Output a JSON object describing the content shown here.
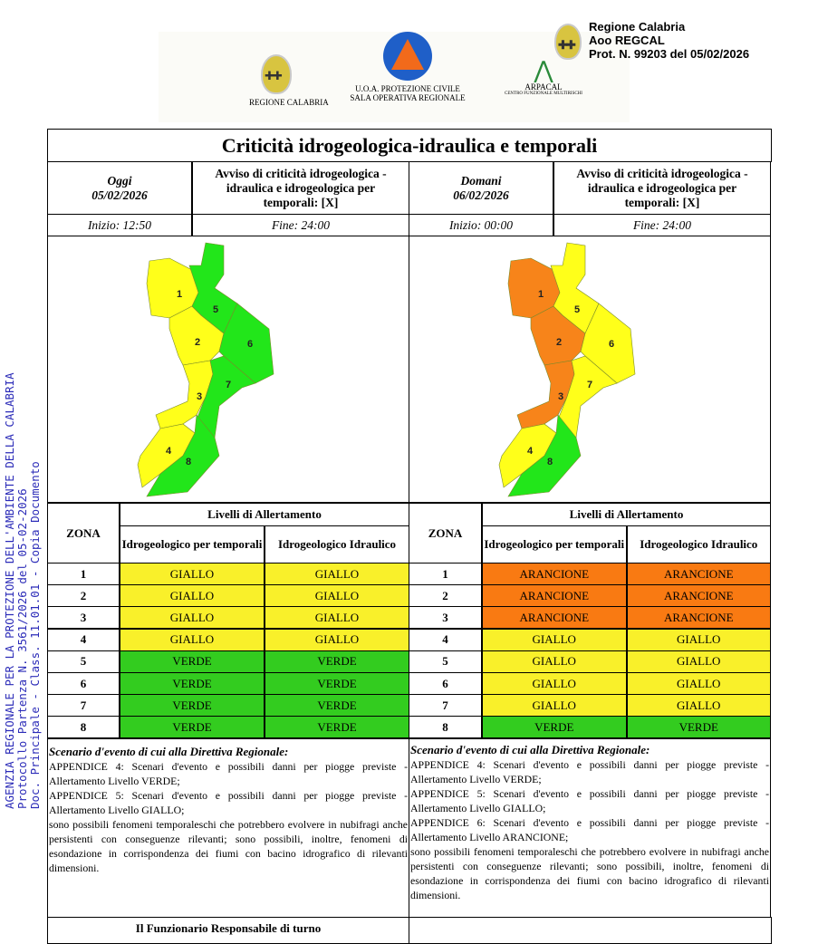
{
  "header": {
    "logos": [
      {
        "name": "regione-calabria",
        "label": "REGIONE CALABRIA"
      },
      {
        "name": "protezione-civile",
        "label_line1": "U.O.A. PROTEZIONE CIVILE",
        "label_line2": "SALA OPERATIVA REGIONALE"
      },
      {
        "name": "arpacal",
        "label": "ARPACAL",
        "sublabel": "CENTRO FUNZIONALE MULTIRISCHI"
      }
    ],
    "protocol_stamp": {
      "line1": "Regione Calabria",
      "line2": "Aoo REGCAL",
      "line3": "Prot. N. 99203 del 05/02/2026"
    }
  },
  "watermark": {
    "line1": "AGENZIA REGIONALE PER LA PROTEZIONE DELL'AMBIENTE DELLA CALABRIA",
    "line2": "Protocollo Partenza N. 3561/2026 del 05-02-2026",
    "line3": "Doc. Principale - Class. 11.01.01 - Copia Documento"
  },
  "title": "Criticità idrogeologica-idraulica e temporali",
  "colors": {
    "GIALLO": "#f9f02a",
    "VERDE": "#33cc1f",
    "ARANCIONE": "#f97a12",
    "map_yellow": "#ffff1a",
    "map_green": "#22e61a",
    "map_orange": "#f7841a"
  },
  "days": [
    {
      "label": "Oggi",
      "date": "05/02/2026",
      "notice": "Avviso di criticità idrogeologica - idraulica e idrogeologica per temporali: [X]",
      "start": "Inizio: 12:50",
      "end": "Fine: 24:00",
      "zones": [
        [
          "1",
          "GIALLO",
          "GIALLO"
        ],
        [
          "2",
          "GIALLO",
          "GIALLO"
        ],
        [
          "3",
          "GIALLO",
          "GIALLO"
        ],
        [
          "4",
          "GIALLO",
          "GIALLO"
        ],
        [
          "5",
          "VERDE",
          "VERDE"
        ],
        [
          "6",
          "VERDE",
          "VERDE"
        ],
        [
          "7",
          "VERDE",
          "VERDE"
        ],
        [
          "8",
          "VERDE",
          "VERDE"
        ]
      ],
      "scenario_title": "Scenario d'evento di cui alla Direttiva Regionale:",
      "scenario": [
        "APPENDICE 4: Scenari d'evento e possibili danni per piogge previste - Allertamento Livello VERDE;",
        "APPENDICE 5: Scenari d'evento e possibili danni per piogge previste - Allertamento Livello GIALLO;",
        "sono possibili fenomeni temporaleschi che potrebbero evolvere in nubifragi anche persistenti con conseguenze rilevanti; sono possibili, inoltre, fenomeni di esondazione in corrispondenza dei fiumi con bacino idrografico di rilevanti dimensioni."
      ]
    },
    {
      "label": "Domani",
      "date": "06/02/2026",
      "notice": "Avviso di criticità idrogeologica - idraulica e idrogeologica per temporali: [X]",
      "start": "Inizio: 00:00",
      "end": "Fine: 24:00",
      "zones": [
        [
          "1",
          "ARANCIONE",
          "ARANCIONE"
        ],
        [
          "2",
          "ARANCIONE",
          "ARANCIONE"
        ],
        [
          "3",
          "ARANCIONE",
          "ARANCIONE"
        ],
        [
          "4",
          "GIALLO",
          "GIALLO"
        ],
        [
          "5",
          "GIALLO",
          "GIALLO"
        ],
        [
          "6",
          "GIALLO",
          "GIALLO"
        ],
        [
          "7",
          "GIALLO",
          "GIALLO"
        ],
        [
          "8",
          "VERDE",
          "VERDE"
        ]
      ],
      "scenario_title": "Scenario d'evento di cui alla Direttiva Regionale:",
      "scenario": [
        "APPENDICE 4: Scenari d'evento e possibili danni per piogge previste - Allertamento Livello VERDE;",
        "APPENDICE 5: Scenari d'evento e possibili danni per piogge previste - Allertamento Livello GIALLO;",
        "APPENDICE 6: Scenari d'evento e possibili danni per piogge previste - Allertamento Livello ARANCIONE;",
        "sono possibili fenomeni temporaleschi che potrebbero evolvere in nubifragi anche persistenti con conseguenze rilevanti; sono possibili, inoltre, fenomeni di esondazione in corrispondenza dei fiumi con bacino idrografico di rilevanti dimensioni."
      ]
    }
  ],
  "table": {
    "zona": "ZONA",
    "levels": "Livelli di Allertamento",
    "col1": "Idrogeologico per temporali",
    "col2": "Idrogeologico Idraulico"
  },
  "footer": {
    "signature": "Il Funzionario Responsabile di turno"
  }
}
